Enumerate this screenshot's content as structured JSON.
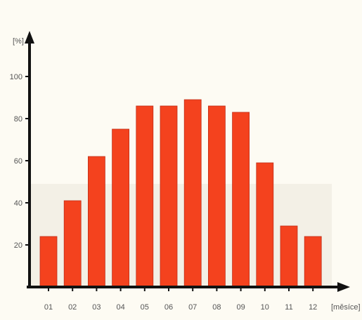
{
  "chart_data": {
    "type": "bar",
    "y_unit_label": "[%]",
    "x_unit_label": "[měsíce]",
    "categories": [
      "01",
      "02",
      "03",
      "04",
      "05",
      "06",
      "07",
      "08",
      "09",
      "10",
      "11",
      "12"
    ],
    "values": [
      24,
      41,
      62,
      75,
      86,
      86,
      89,
      86,
      83,
      59,
      29,
      24
    ],
    "y_ticks": [
      20,
      40,
      60,
      80,
      100
    ],
    "ylim": [
      0,
      117
    ],
    "grid": false,
    "colors": {
      "bar_fill": "#f4421e",
      "bar_edge": "#c0301a",
      "axis": "#111111",
      "background": "#fdfbf3",
      "panel": "#f3f0e6"
    }
  }
}
